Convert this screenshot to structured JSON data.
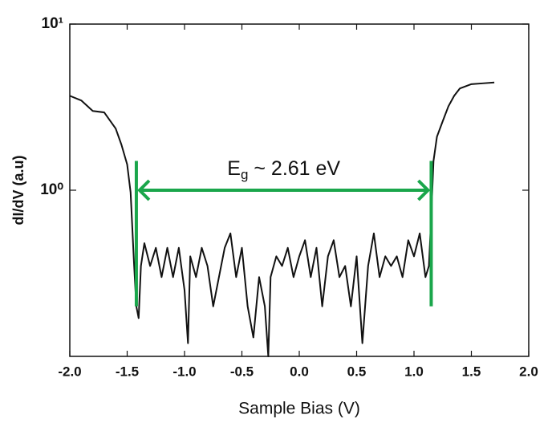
{
  "chart_data": {
    "type": "line",
    "log_y": true,
    "x_label": "Sample Bias (V)",
    "y_label": "dI/dV (a.u)",
    "xlim": [
      -2.0,
      2.0
    ],
    "xticks": [
      {
        "value": -2.0,
        "label": "-2.0"
      },
      -1.5,
      {
        "value": -1.0,
        "label": "-1.0"
      },
      -0.5,
      {
        "value": 0.0,
        "label": "0.0"
      },
      0.5,
      {
        "value": 1.0,
        "label": "1.0"
      },
      1.5,
      {
        "value": 2.0,
        "label": "2.0"
      }
    ],
    "ylim": [
      0.1,
      10
    ],
    "yticks": [
      {
        "value": 1,
        "label": "10⁰"
      },
      {
        "value": 10,
        "label": "10¹"
      }
    ],
    "color": "#111111",
    "x": [
      -2.0,
      -1.9,
      -1.8,
      -1.7,
      -1.6,
      -1.55,
      -1.5,
      -1.47,
      -1.44,
      -1.42,
      -1.4,
      -1.38,
      -1.35,
      -1.3,
      -1.25,
      -1.2,
      -1.15,
      -1.1,
      -1.05,
      -1.0,
      -0.97,
      -0.95,
      -0.9,
      -0.85,
      -0.8,
      -0.75,
      -0.7,
      -0.65,
      -0.6,
      -0.55,
      -0.5,
      -0.45,
      -0.4,
      -0.35,
      -0.3,
      -0.27,
      -0.25,
      -0.2,
      -0.15,
      -0.1,
      -0.05,
      0.0,
      0.05,
      0.1,
      0.15,
      0.2,
      0.25,
      0.3,
      0.35,
      0.4,
      0.45,
      0.5,
      0.55,
      0.6,
      0.65,
      0.7,
      0.75,
      0.8,
      0.85,
      0.9,
      0.95,
      1.0,
      1.05,
      1.1,
      1.13,
      1.15,
      1.17,
      1.2,
      1.25,
      1.3,
      1.35,
      1.4,
      1.5,
      1.6,
      1.7
    ],
    "values": [
      3.7,
      3.47,
      3.0,
      2.94,
      2.35,
      1.88,
      1.43,
      0.97,
      0.36,
      0.2,
      0.17,
      0.35,
      0.48,
      0.35,
      0.45,
      0.3,
      0.45,
      0.3,
      0.45,
      0.25,
      0.12,
      0.4,
      0.3,
      0.45,
      0.35,
      0.2,
      0.3,
      0.45,
      0.55,
      0.3,
      0.45,
      0.2,
      0.13,
      0.3,
      0.2,
      0.1,
      0.3,
      0.4,
      0.35,
      0.45,
      0.3,
      0.4,
      0.5,
      0.3,
      0.45,
      0.2,
      0.4,
      0.5,
      0.3,
      0.35,
      0.2,
      0.4,
      0.12,
      0.35,
      0.55,
      0.3,
      0.4,
      0.35,
      0.4,
      0.3,
      0.5,
      0.4,
      0.55,
      0.3,
      0.35,
      0.69,
      1.5,
      2.1,
      2.6,
      3.2,
      3.7,
      4.1,
      4.35,
      4.4,
      4.45
    ],
    "annotation": {
      "label_main": "E",
      "label_sub": "g",
      "label_rest": " ~ 2.61 eV",
      "color": "#1aa64b",
      "x_start": -1.42,
      "x_end": 1.15,
      "y": 1.0,
      "bar_ymin": 0.2,
      "bar_ymax": 1.5
    }
  }
}
